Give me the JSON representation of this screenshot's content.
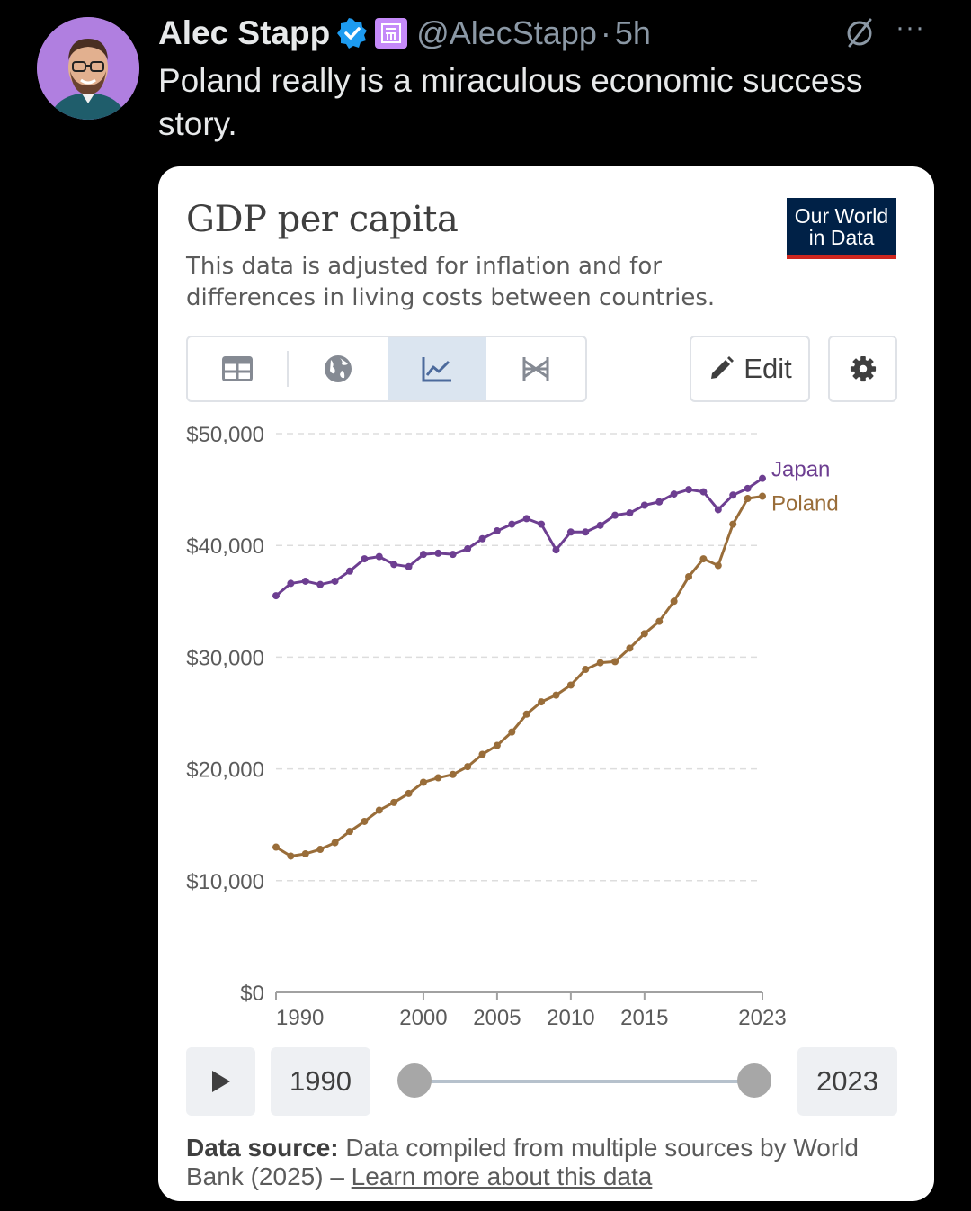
{
  "tweet": {
    "author_name": "Alec Stapp",
    "handle": "@AlecStapp",
    "separator": "·",
    "time": "5h",
    "text": "Poland really is a miraculous economic success story.",
    "more": "···"
  },
  "card": {
    "title": "GDP per capita",
    "subtitle": "This data is adjusted for inflation and for differences in living costs between countries.",
    "logo_line1": "Our World",
    "logo_line2": "in Data",
    "edit_label": "Edit",
    "start_year": "1990",
    "end_year": "2023",
    "source_label": "Data source:",
    "source_text": "Data compiled from multiple sources by World Bank (2025) –",
    "learn_more": "Learn more about this data"
  },
  "chart_data": {
    "type": "line",
    "title": "GDP per capita",
    "x": [
      1990,
      1991,
      1992,
      1993,
      1994,
      1995,
      1996,
      1997,
      1998,
      1999,
      2000,
      2001,
      2002,
      2003,
      2004,
      2005,
      2006,
      2007,
      2008,
      2009,
      2010,
      2011,
      2012,
      2013,
      2014,
      2015,
      2016,
      2017,
      2018,
      2019,
      2020,
      2021,
      2022,
      2023
    ],
    "xticks": [
      "1990",
      "2000",
      "2005",
      "2010",
      "2015",
      "2023"
    ],
    "yticks": [
      "$0",
      "$10,000",
      "$20,000",
      "$30,000",
      "$40,000",
      "$50,000"
    ],
    "ylim": [
      0,
      50000
    ],
    "grid": true,
    "series": [
      {
        "name": "Japan",
        "color": "#6d3e91",
        "values": [
          35500,
          36600,
          36800,
          36500,
          36800,
          37700,
          38800,
          39000,
          38300,
          38100,
          39200,
          39300,
          39200,
          39700,
          40600,
          41300,
          41900,
          42400,
          41900,
          39600,
          41200,
          41200,
          41800,
          42700,
          42900,
          43600,
          43900,
          44600,
          45000,
          44800,
          43200,
          44500,
          45100,
          46000
        ]
      },
      {
        "name": "Poland",
        "color": "#996d39",
        "values": [
          13000,
          12200,
          12400,
          12800,
          13400,
          14400,
          15300,
          16300,
          17000,
          17800,
          18800,
          19200,
          19500,
          20200,
          21300,
          22100,
          23300,
          24900,
          26000,
          26600,
          27500,
          28900,
          29500,
          29600,
          30800,
          32100,
          33200,
          35000,
          37200,
          38800,
          38200,
          41900,
          44200,
          44400
        ]
      }
    ]
  }
}
